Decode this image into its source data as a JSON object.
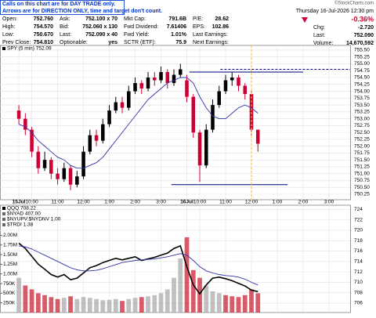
{
  "header": {
    "note": [
      "Calls on this chart are for DAY TRADE only.",
      "Arrows are for DIRECTION ONLY, time and target don't count."
    ],
    "brand": "©StockCharts.com",
    "datetime": "Thursday 16-Jul-2026 12:30 pm",
    "change_pct": "-0.36%",
    "right_rows": [
      [
        "Chg:",
        "-2.720"
      ],
      [
        "Last:",
        "752.090"
      ],
      [
        "Volume:",
        "14,670,592"
      ]
    ],
    "quote_rows": [
      [
        [
          "Open:",
          "752.760"
        ],
        [
          "Ask:",
          "752.100 x 70"
        ],
        [
          "Mkt Cap:",
          "791.6B"
        ],
        [
          "P/E:",
          "28.62"
        ]
      ],
      [
        [
          "High:",
          "754.570"
        ],
        [
          "Bid:",
          "752.060 x 130"
        ],
        [
          "Fwd Dividend:",
          "7.61406"
        ],
        [
          "EPS:",
          "102.86"
        ]
      ],
      [
        [
          "Low:",
          "750.670"
        ],
        [
          "Last:",
          "752.090 x 40"
        ],
        [
          "Fwd Yield:",
          "1.01%"
        ],
        [
          "Last Earnings:",
          ""
        ]
      ],
      [
        [
          "Prev Close:",
          "754.810"
        ],
        [
          "Optionable:",
          "yes"
        ],
        [
          "SCTR (ETF):",
          "75.9"
        ],
        [
          "Next Earnings:",
          ""
        ]
      ]
    ]
  },
  "chart_data": [
    {
      "type": "candlestick",
      "legend": "SPY (5 min) 752.09",
      "x": [
        0,
        0.25,
        0.5,
        0.75,
        1,
        1.25,
        1.5,
        1.75,
        2,
        2.25,
        2.5,
        2.75,
        3,
        3.25,
        3.5,
        3.75,
        4,
        4.25,
        4.5,
        4.75,
        5,
        5.25,
        5.5,
        5.75,
        6,
        6.25,
        6.5,
        6.75,
        7,
        7.25,
        7.5,
        7.75,
        8,
        8.25,
        8.5,
        8.75,
        9,
        9.25
      ],
      "open": [
        753.3,
        753.0,
        752.6,
        751.8,
        751.2,
        751.5,
        751.0,
        750.8,
        751.2,
        750.6,
        750.9,
        751.8,
        752.4,
        752.2,
        752.8,
        753.3,
        753.6,
        753.4,
        754.0,
        754.3,
        754.1,
        754.5,
        754.4,
        754.7,
        754.3,
        754.6,
        754.4,
        753.8,
        752.5,
        751.3,
        752.6,
        753.5,
        754.0,
        754.4,
        754.5,
        754.2,
        753.9,
        752.6
      ],
      "high": [
        753.5,
        753.2,
        752.7,
        752.0,
        751.8,
        751.6,
        751.2,
        751.4,
        751.3,
        751.1,
        752.0,
        752.6,
        752.6,
        753.0,
        753.5,
        753.8,
        753.8,
        754.2,
        754.5,
        754.4,
        754.7,
        754.7,
        754.9,
        754.8,
        754.8,
        755.0,
        754.6,
        753.9,
        752.6,
        752.8,
        753.7,
        754.2,
        754.6,
        754.7,
        754.6,
        754.3,
        754.0,
        752.6
      ],
      "low": [
        752.8,
        752.4,
        751.6,
        751.0,
        751.1,
        750.8,
        750.6,
        750.7,
        750.4,
        750.5,
        750.8,
        751.7,
        752.0,
        752.1,
        752.7,
        753.2,
        753.2,
        753.3,
        753.9,
        753.9,
        754.0,
        754.2,
        754.3,
        754.1,
        754.2,
        754.5,
        753.6,
        752.3,
        750.7,
        751.2,
        752.5,
        753.4,
        753.9,
        754.2,
        754.0,
        753.7,
        752.4,
        751.8
      ],
      "close": [
        753.0,
        752.6,
        751.8,
        751.2,
        751.5,
        751.0,
        750.8,
        751.2,
        750.6,
        750.9,
        751.8,
        752.4,
        752.2,
        752.8,
        753.3,
        753.6,
        753.4,
        754.0,
        754.3,
        754.1,
        754.5,
        754.4,
        754.7,
        754.3,
        754.6,
        754.8,
        753.8,
        752.5,
        751.3,
        752.6,
        753.5,
        754.0,
        754.4,
        754.5,
        754.2,
        753.9,
        752.6,
        752.09
      ],
      "up_color": "#000000",
      "down_color": "#cc0033",
      "series": [
        {
          "color": "#3333aa",
          "values": [
            752.8,
            752.7,
            752.5,
            752.2,
            752.0,
            751.8,
            751.6,
            751.5,
            751.3,
            751.2,
            751.2,
            751.3,
            751.4,
            751.6,
            751.9,
            752.2,
            752.5,
            752.8,
            753.1,
            753.4,
            753.7,
            753.9,
            754.1,
            754.3,
            754.4,
            754.5,
            754.5,
            754.3,
            753.8,
            753.4,
            753.1,
            753.0,
            753.0,
            753.2,
            753.4,
            753.5,
            753.4,
            753.2
          ]
        }
      ],
      "hlines": [
        {
          "value": 754.7,
          "x": [
            6.6,
            11.0
          ],
          "color": "#000080",
          "dashed": false
        },
        {
          "value": 754.8,
          "x": [
            7.8,
            12.82
          ],
          "color": "#000080",
          "dashed": true
        },
        {
          "value": 750.6,
          "x": [
            5.9,
            10.4
          ],
          "color": "#000080",
          "dashed": false
        }
      ],
      "vline": {
        "value": 9.0,
        "color": "#f0c030"
      },
      "xlim": [
        -0.73,
        12.82
      ],
      "ylim": [
        750.05,
        755.67
      ],
      "xticks": [
        {
          "value": 0,
          "label": "15Jul"
        },
        {
          "value": 0.5,
          "label": "10:00"
        },
        {
          "value": 1.5,
          "label": "11:00"
        },
        {
          "value": 2.5,
          "label": "12:00"
        },
        {
          "value": 3.5,
          "label": "1:00"
        },
        {
          "value": 4.5,
          "label": "2:00"
        },
        {
          "value": 5.5,
          "label": "3:00"
        },
        {
          "value": 6.5,
          "label": "16Jul"
        },
        {
          "value": 7.0,
          "label": "10:00"
        },
        {
          "value": 8.0,
          "label": "11:00"
        },
        {
          "value": 9.0,
          "label": "12:00"
        },
        {
          "value": 10.0,
          "label": "1:00"
        },
        {
          "value": 11.0,
          "label": "2:00"
        },
        {
          "value": 12.0,
          "label": "3:00"
        }
      ],
      "yticks": [
        750.25,
        {
          "value": 750.5,
          "label": "750.50"
        },
        750.75,
        {
          "value": 751,
          "label": "751.00"
        },
        751.25,
        {
          "value": 751.5,
          "label": "751.50"
        },
        751.75,
        {
          "value": 752,
          "label": "752.00"
        },
        752.25,
        {
          "value": 752.5,
          "label": "752.50"
        },
        752.75,
        {
          "value": 753,
          "label": "753.00"
        },
        753.25,
        {
          "value": 753.5,
          "label": "753.50"
        },
        753.75,
        {
          "value": 754,
          "label": "754.00"
        },
        754.25,
        {
          "value": 754.5,
          "label": "754.50"
        },
        754.75,
        {
          "value": 755,
          "label": "755.00"
        },
        755.25,
        {
          "value": 755.5,
          "label": "755.50"
        }
      ],
      "grid": true
    },
    {
      "type": "line",
      "indicators": [
        "$NYAD 407.00",
        "$NYUPV:$NYDNV 1.00",
        "$TRDI 1.38"
      ],
      "x": [
        0,
        0.25,
        0.5,
        0.75,
        1,
        1.25,
        1.5,
        1.75,
        2,
        2.25,
        2.5,
        2.75,
        3,
        3.25,
        3.5,
        3.75,
        4,
        4.25,
        4.5,
        4.75,
        5,
        5.25,
        5.5,
        5.75,
        6,
        6.25,
        6.5,
        6.75,
        7,
        7.25,
        7.5,
        7.75,
        8,
        8.25,
        8.5,
        8.75,
        9,
        9.25
      ],
      "series": [
        {
          "name": "QQQ 708.22",
          "color": "#000000",
          "axis": "y2",
          "values": [
            717.5,
            716.5,
            715.0,
            713.5,
            712.5,
            711.5,
            711.0,
            711.5,
            710.5,
            710.8,
            711.8,
            712.8,
            713.2,
            713.8,
            714.2,
            714.6,
            714.3,
            714.6,
            714.9,
            714.2,
            714.5,
            714.8,
            715.2,
            715.6,
            716.5,
            717.0,
            713.0,
            709.5,
            707.8,
            709.5,
            710.8,
            711.0,
            710.7,
            710.3,
            709.8,
            709.3,
            708.5,
            708.22
          ]
        },
        {
          "color": "#3333aa",
          "axis": "y2",
          "values": [
            717,
            716.8,
            716.4,
            715.8,
            715.2,
            714.6,
            714.0,
            713.4,
            712.8,
            712.4,
            712.2,
            712.2,
            712.3,
            712.6,
            713.0,
            713.4,
            713.8,
            714.0,
            714.2,
            714.3,
            714.4,
            714.5,
            714.7,
            714.9,
            715.2,
            715.5,
            715.2,
            714.2,
            713.0,
            712.2,
            711.8,
            711.5,
            711.3,
            711.2,
            711.0,
            710.6,
            710.0,
            709.5
          ]
        }
      ],
      "volume": {
        "up_color": "#b0b0b0",
        "down_color": "#cc3344",
        "values": [
          900000,
          700000,
          600000,
          500000,
          450000,
          400000,
          350000,
          380000,
          420000,
          350000,
          400000,
          380000,
          350000,
          320000,
          330000,
          350000,
          300000,
          350000,
          380000,
          400000,
          420000,
          450000,
          500000,
          600000,
          900000,
          1400000,
          1950000,
          1100000,
          900000,
          700000,
          550000,
          500000,
          450000,
          420000,
          400000,
          450000,
          600000,
          500000
        ]
      },
      "xlim": [
        -0.73,
        12.82
      ],
      "ylim": [
        0,
        2780000
      ],
      "y2lim": [
        704.2,
        724.8
      ],
      "yticks": [
        {
          "value": 250000,
          "label": "250K"
        },
        {
          "value": 500000,
          "label": "500K"
        },
        {
          "value": 750000,
          "label": "750K"
        },
        {
          "value": 1000000,
          "label": "1.00M"
        },
        {
          "value": 1250000,
          "label": "1.25M"
        },
        {
          "value": 1500000,
          "label": "1.50M"
        },
        {
          "value": 1750000,
          "label": "1.75M"
        },
        {
          "value": 2000000,
          "label": "2.00M"
        }
      ],
      "y2ticks": [
        706,
        708,
        710,
        712,
        714,
        716,
        718,
        720,
        722,
        724
      ],
      "grid": true
    }
  ]
}
